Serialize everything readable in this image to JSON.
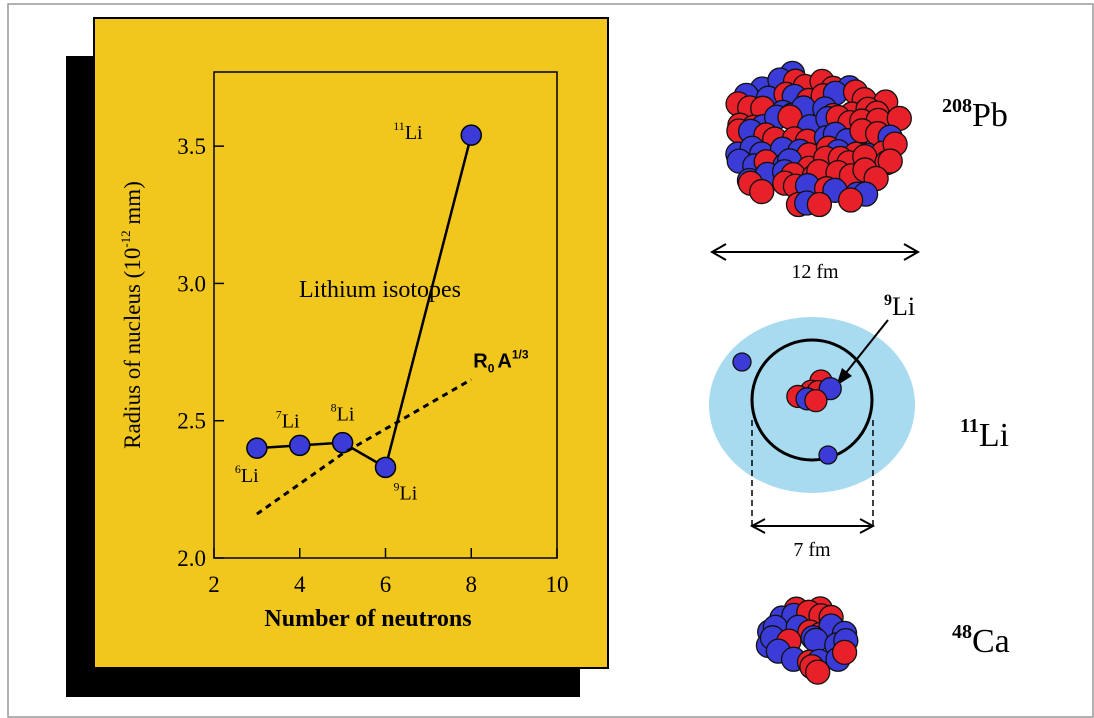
{
  "chart_data": {
    "type": "line",
    "title": "Lithium isotopes",
    "x_label": "Number of neutrons",
    "y_label": {
      "text": "Radius of nucleus (10",
      "exponent": "-12",
      "unit": " mm)"
    },
    "xlim": [
      2,
      10
    ],
    "xticks": [
      2,
      4,
      6,
      8,
      10
    ],
    "ylim": [
      2,
      3.77
    ],
    "yticks": [
      {
        "value": 2,
        "label": "2.0"
      },
      2.5,
      {
        "value": 3,
        "label": "3.0"
      },
      3.5
    ],
    "series": [
      {
        "x": [
          3,
          4,
          5,
          6,
          8
        ],
        "values": [
          2.4,
          2.41,
          2.42,
          2.33,
          3.54
        ],
        "color": "#000000",
        "style": "solid",
        "markers": true,
        "point_labels": [
          {
            "mass": "6",
            "symbol": "Li"
          },
          {
            "mass": "7",
            "symbol": "Li"
          },
          {
            "mass": "8",
            "symbol": "Li"
          },
          {
            "mass": "9",
            "symbol": "Li"
          },
          {
            "mass": "11",
            "symbol": "Li"
          }
        ]
      },
      {
        "x": [
          3,
          4,
          5,
          6,
          7,
          8
        ],
        "values": [
          2.16,
          2.27,
          2.38,
          2.47,
          2.56,
          2.65
        ],
        "color": "#000000",
        "style": "dashed",
        "markers": false,
        "curve_label": {
          "base": "R",
          "sub": "0",
          "main": "A",
          "exp": "1/3"
        }
      }
    ]
  },
  "diagram": {
    "pb": {
      "mass": "208",
      "symbol": "Pb"
    },
    "pb_width": "12 fm",
    "core": {
      "mass": "9",
      "symbol": "Li"
    },
    "li": {
      "mass": "11",
      "symbol": "Li"
    },
    "li_width": "7 fm",
    "ca": {
      "mass": "48",
      "symbol": "Ca"
    }
  }
}
